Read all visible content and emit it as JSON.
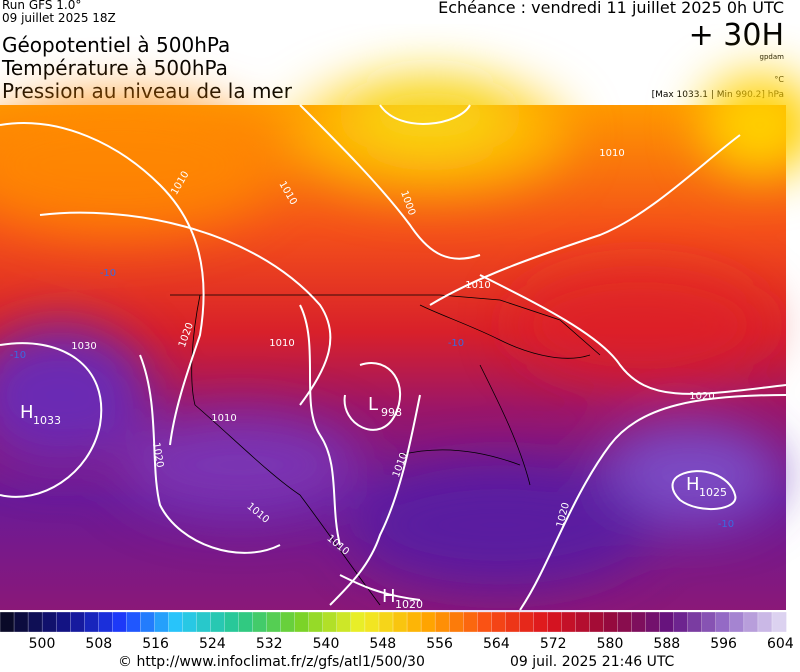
{
  "header": {
    "run": "Run GFS 1.0°",
    "run_date": "09 juillet 2025 18Z",
    "title_lines": [
      "Géopotentiel à 500hPa",
      "Température à 500hPa",
      "Pression au niveau de la mer"
    ],
    "valid_time": "Echéance : vendredi 11 juillet 2025 0h UTC",
    "lead": "+ 30H",
    "unit_geopotential": "gpdam",
    "unit_temperature": "°C",
    "pressure_range": "[Max 1033.1 | Min 990.2] hPa"
  },
  "map": {
    "isobar_labels": [
      "1010",
      "1010",
      "1000",
      "1010",
      "1010",
      "1020",
      "1030",
      "1010",
      "1010",
      "1020",
      "1010",
      "1010",
      "1010",
      "1020",
      "1020"
    ],
    "temperature_labels": [
      "-10",
      "-10",
      "-10",
      "-10"
    ],
    "pressure_centers": [
      {
        "letter": "H",
        "value": "1033"
      },
      {
        "letter": "L",
        "value": "998"
      },
      {
        "letter": "H",
        "value": "1025"
      },
      {
        "letter": "H",
        "value": "1020"
      }
    ]
  },
  "colorbar": {
    "labels": [
      "500",
      "508",
      "516",
      "524",
      "532",
      "540",
      "548",
      "556",
      "564",
      "572",
      "580",
      "588",
      "596",
      "604"
    ]
  },
  "footer": {
    "source": "© http://www.infoclimat.fr/z/gfs/atl1/500/30",
    "generated": "09 juil. 2025 21:46 UTC"
  }
}
